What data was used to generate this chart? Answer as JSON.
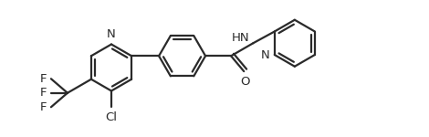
{
  "background_color": "#ffffff",
  "line_color": "#2a2a2a",
  "line_width": 1.6,
  "font_size": 9.5,
  "figsize": [
    4.7,
    1.5
  ],
  "dpi": 100,
  "xlim": [
    0,
    4.7
  ],
  "ylim": [
    0,
    1.5
  ]
}
